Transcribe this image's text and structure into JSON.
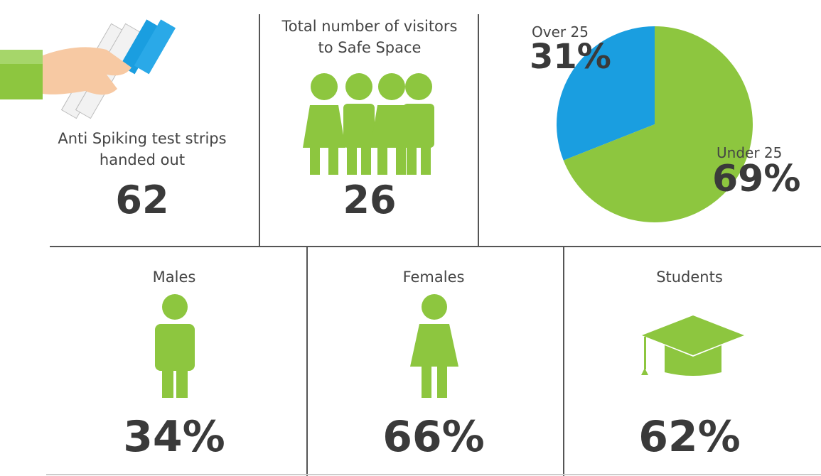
{
  "stats": [
    {
      "label": "Anti Spiking test strips handed out",
      "value": "62"
    },
    {
      "label": "Total number of visitors to Safe Space",
      "value": "26"
    }
  ],
  "chart_data": {
    "type": "pie",
    "categories": [
      "Over 25",
      "Under 25"
    ],
    "values": [
      31,
      69
    ],
    "value_labels": [
      "31%",
      "69%"
    ],
    "colors": [
      "#1a9ee0",
      "#8dc63f"
    ]
  },
  "demographics": [
    {
      "label": "Males",
      "value": "34%"
    },
    {
      "label": "Females",
      "value": "66%"
    },
    {
      "label": "Students",
      "value": "62%"
    }
  ]
}
